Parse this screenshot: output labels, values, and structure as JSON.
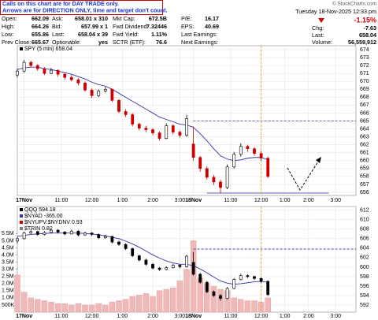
{
  "quote": {
    "notes": [
      "Calls on this chart are for DAY TRADE only.",
      "Arrows are for DIRECTION ONLY, time and target don't count."
    ],
    "rows": [
      [
        [
          "Open:",
          "662.09"
        ],
        [
          "Ask:",
          "658.01 x 310"
        ],
        [
          "Mkt Cap:",
          "672.5B"
        ],
        [
          "P/E:",
          "16.17"
        ]
      ],
      [
        [
          "High:",
          "664.26"
        ],
        [
          "Bid:",
          "657.99 x 1"
        ],
        [
          "Fwd Dividend:",
          "7.32446"
        ],
        [
          "EPS:",
          "40.69"
        ]
      ],
      [
        [
          "Low:",
          "655.86"
        ],
        [
          "Last:",
          "658.04 x 39"
        ],
        [
          "Fwd Yield:",
          "1.11%"
        ],
        [
          "Last Earnings:",
          ""
        ]
      ],
      [
        [
          "Prev Close:",
          "665.67"
        ],
        [
          "Optionable:",
          "yes"
        ],
        [
          "SCTR (ETF):",
          "76.6"
        ],
        [
          "Next Earnings:",
          ""
        ]
      ]
    ],
    "copyright": "© StockCharts.com",
    "date": "Tuesday 18-Nov-2025 12:33 pm",
    "change_pct": "-1.15%",
    "side": [
      [
        "Chg:",
        "-7.63"
      ],
      [
        "Last:",
        "658.04"
      ],
      [
        "Volume:",
        "56,559,912"
      ]
    ]
  },
  "chart_data": [
    {
      "type": "candlestick",
      "legend": [
        {
          "name": "SPY (5 min) 658.04",
          "color": "#000000"
        }
      ],
      "colors": {
        "up": "#000000",
        "down": "#cc0000",
        "ma": "#3333aa"
      },
      "xlim": [
        0,
        100
      ],
      "ylim": [
        655.6,
        674.5
      ],
      "xticks": [
        {
          "value": 2,
          "label": "17Nov"
        },
        {
          "value": 13,
          "label": "11:00"
        },
        {
          "value": 22,
          "label": "12:00"
        },
        {
          "value": 31,
          "label": "1:00"
        },
        {
          "value": 40,
          "label": "2:00"
        },
        {
          "value": 48,
          "label": "3:00"
        },
        {
          "value": 52,
          "label": "18Nov"
        },
        {
          "value": 63,
          "label": "11:00"
        },
        {
          "value": 72,
          "label": "12:00"
        },
        {
          "value": 79,
          "label": "1:00"
        },
        {
          "value": 86,
          "label": "2:00"
        },
        {
          "value": 94,
          "label": "3:00"
        }
      ],
      "yticks": [
        656,
        657,
        658,
        659,
        660,
        661,
        662,
        663,
        664,
        665,
        666,
        667,
        668,
        669,
        670,
        671,
        672,
        673,
        674
      ],
      "grid": true,
      "candles": [
        [
          0,
          670.8,
          671.6,
          670.5,
          671.3
        ],
        [
          2,
          671.3,
          672.7,
          671.1,
          672.4
        ],
        [
          4,
          672.4,
          672.6,
          671.8,
          672.0
        ],
        [
          6,
          672.0,
          672.2,
          671.3,
          671.6
        ],
        [
          8,
          671.6,
          671.8,
          670.8,
          671.0
        ],
        [
          10,
          671.0,
          671.7,
          670.9,
          671.4
        ],
        [
          12,
          671.4,
          671.5,
          670.6,
          670.9
        ],
        [
          14,
          670.9,
          671.1,
          670.2,
          670.5
        ],
        [
          16,
          670.5,
          670.8,
          670.0,
          670.2
        ],
        [
          18,
          670.2,
          670.4,
          669.5,
          669.8
        ],
        [
          20,
          669.8,
          670.0,
          668.7,
          668.9
        ],
        [
          22,
          668.9,
          669.1,
          667.9,
          668.2
        ],
        [
          24,
          668.2,
          669.0,
          668.0,
          668.8
        ],
        [
          26,
          668.8,
          669.3,
          668.6,
          669.0
        ],
        [
          28,
          669.0,
          669.1,
          667.4,
          667.6
        ],
        [
          30,
          667.6,
          667.8,
          666.0,
          666.2
        ],
        [
          32,
          666.2,
          666.5,
          665.5,
          665.8
        ],
        [
          34,
          665.8,
          666.0,
          664.3,
          664.6
        ],
        [
          36,
          664.6,
          664.8,
          663.8,
          664.1
        ],
        [
          38,
          664.1,
          664.4,
          663.6,
          663.9
        ],
        [
          40,
          663.9,
          664.1,
          663.2,
          663.5
        ],
        [
          42,
          663.5,
          663.7,
          662.5,
          662.8
        ],
        [
          44,
          662.8,
          664.7,
          662.7,
          664.4
        ],
        [
          46,
          664.4,
          664.6,
          663.3,
          663.6
        ],
        [
          48,
          663.6,
          663.8,
          662.9,
          663.2
        ],
        [
          50,
          663.2,
          665.8,
          663.0,
          665.3
        ],
        [
          52,
          662.1,
          664.3,
          660.0,
          660.4
        ],
        [
          54,
          660.4,
          660.6,
          658.6,
          659.0
        ],
        [
          56,
          659.0,
          659.3,
          657.6,
          657.9
        ],
        [
          58,
          657.9,
          658.2,
          656.9,
          657.3
        ],
        [
          60,
          657.3,
          657.6,
          655.9,
          656.6
        ],
        [
          62,
          656.6,
          659.5,
          656.4,
          659.2
        ],
        [
          64,
          659.2,
          661.1,
          659.0,
          660.8
        ],
        [
          66,
          660.8,
          662.2,
          660.5,
          661.8
        ],
        [
          68,
          661.8,
          662.0,
          661.1,
          661.5
        ],
        [
          70,
          661.5,
          661.7,
          660.6,
          660.9
        ],
        [
          72,
          660.9,
          661.2,
          660.0,
          660.3
        ],
        [
          74,
          660.3,
          660.5,
          657.8,
          658.0
        ]
      ],
      "ma": [
        671.5,
        671.7,
        671.8,
        671.8,
        671.6,
        671.5,
        671.3,
        671.1,
        670.9,
        670.6,
        670.3,
        669.9,
        669.6,
        669.4,
        669.0,
        668.5,
        668.0,
        667.5,
        667.0,
        666.5,
        666.0,
        665.5,
        665.2,
        664.9,
        664.6,
        664.5,
        664.2,
        663.4,
        662.5,
        661.5,
        660.6,
        660.2,
        660.0,
        660.1,
        660.3,
        660.4,
        660.4,
        660.1
      ],
      "hlines": [
        {
          "value": 665.0,
          "x": [
            52,
            100
          ],
          "color": "#3333aa",
          "dashed": true
        },
        {
          "value": 655.9,
          "x": [
            56,
            92
          ],
          "color": "#3333aa",
          "dashed": false
        }
      ],
      "vline": {
        "value": 72,
        "color": "#f0a020"
      }
    },
    {
      "type": "candlestick",
      "legend": [
        {
          "name": "QQQ 594.18",
          "color": "#000000"
        },
        {
          "name": "$NYAD -365.00",
          "color": "#3333aa"
        },
        {
          "name": "$NYUPV:$NYDNV 0.93",
          "color": "#cc0000"
        },
        {
          "name": "$TRIN 0.82",
          "color": "#808080"
        }
      ],
      "colors": {
        "up": "#000000",
        "down": "#000000",
        "ma": "#3333aa",
        "volume": "#f2b8b8"
      },
      "xlim": [
        0,
        100
      ],
      "ylim": [
        590.5,
        612.8
      ],
      "vlim": [
        0,
        7400000
      ],
      "xticks": [
        {
          "value": 2,
          "label": "17Nov"
        },
        {
          "value": 13,
          "label": "11:00"
        },
        {
          "value": 22,
          "label": "12:00"
        },
        {
          "value": 31,
          "label": "1:00"
        },
        {
          "value": 40,
          "label": "2:00"
        },
        {
          "value": 48,
          "label": "3:00"
        },
        {
          "value": 52,
          "label": "18Nov"
        },
        {
          "value": 63,
          "label": "11:00"
        },
        {
          "value": 72,
          "label": "12:00"
        },
        {
          "value": 79,
          "label": "1:00"
        },
        {
          "value": 86,
          "label": "2:00"
        },
        {
          "value": 94,
          "label": "3:00"
        }
      ],
      "yticks": [
        592,
        594,
        596,
        598,
        600,
        602,
        604,
        606,
        608,
        610,
        612
      ],
      "vticks": [
        {
          "value": 500000,
          "label": "500K"
        },
        {
          "value": 1000000,
          "label": "1.0M"
        },
        {
          "value": 1500000,
          "label": "1.5M"
        },
        {
          "value": 2000000,
          "label": "2.0M"
        },
        {
          "value": 2500000,
          "label": "2.5M"
        },
        {
          "value": 3000000,
          "label": "3.0M"
        },
        {
          "value": 3500000,
          "label": "3.5M"
        },
        {
          "value": 4000000,
          "label": "4.0M"
        },
        {
          "value": 4500000,
          "label": "4.5M"
        },
        {
          "value": 5000000,
          "label": "5.0M"
        },
        {
          "value": 5500000,
          "label": "5.5M"
        }
      ],
      "grid": true,
      "candles": [
        [
          0,
          605.5,
          606.4,
          605.0,
          606.0
        ],
        [
          2,
          606.0,
          607.5,
          605.8,
          607.2
        ],
        [
          4,
          607.2,
          607.9,
          607.0,
          607.5
        ],
        [
          6,
          607.5,
          607.7,
          606.6,
          606.9
        ],
        [
          8,
          606.9,
          607.6,
          606.7,
          607.3
        ],
        [
          10,
          607.3,
          608.1,
          607.1,
          607.8
        ],
        [
          12,
          607.8,
          608.0,
          607.1,
          607.4
        ],
        [
          14,
          607.4,
          607.6,
          606.7,
          607.0
        ],
        [
          16,
          607.0,
          607.9,
          606.9,
          607.6
        ],
        [
          18,
          607.6,
          607.8,
          606.5,
          606.8
        ],
        [
          20,
          606.8,
          607.5,
          606.6,
          607.2
        ],
        [
          22,
          607.2,
          607.4,
          606.6,
          606.9
        ],
        [
          24,
          606.9,
          607.1,
          605.9,
          606.2
        ],
        [
          26,
          606.2,
          606.8,
          606.0,
          606.5
        ],
        [
          28,
          606.5,
          606.6,
          605.0,
          605.3
        ],
        [
          30,
          605.3,
          605.6,
          604.5,
          604.8
        ],
        [
          32,
          604.8,
          605.0,
          603.6,
          603.9
        ],
        [
          34,
          603.9,
          604.1,
          602.1,
          602.4
        ],
        [
          36,
          602.4,
          602.6,
          601.2,
          601.5
        ],
        [
          38,
          601.5,
          601.8,
          600.3,
          600.6
        ],
        [
          40,
          600.6,
          600.9,
          599.5,
          599.8
        ],
        [
          42,
          599.8,
          600.0,
          599.2,
          599.5
        ],
        [
          44,
          599.5,
          600.2,
          599.3,
          599.9
        ],
        [
          46,
          599.9,
          600.7,
          599.7,
          600.4
        ],
        [
          48,
          600.4,
          600.6,
          599.8,
          600.1
        ],
        [
          50,
          600.1,
          602.6,
          599.9,
          602.3
        ],
        [
          52,
          601.0,
          603.2,
          598.2,
          598.5
        ],
        [
          54,
          598.5,
          598.8,
          596.5,
          596.8
        ],
        [
          56,
          596.8,
          597.1,
          594.5,
          594.8
        ],
        [
          58,
          594.8,
          595.1,
          593.7,
          594.0
        ],
        [
          60,
          594.0,
          594.3,
          592.9,
          593.4
        ],
        [
          62,
          593.4,
          595.8,
          593.2,
          595.5
        ],
        [
          64,
          595.5,
          597.7,
          595.3,
          597.4
        ],
        [
          66,
          597.4,
          598.6,
          597.2,
          598.2
        ],
        [
          68,
          598.2,
          598.5,
          597.7,
          598.0
        ],
        [
          70,
          598.0,
          598.2,
          597.3,
          597.6
        ],
        [
          72,
          597.6,
          597.9,
          596.7,
          597.0
        ],
        [
          74,
          597.0,
          597.2,
          593.9,
          594.2
        ]
      ],
      "ma": [
        606.5,
        606.7,
        606.9,
        607.0,
        607.1,
        607.2,
        607.2,
        607.2,
        607.2,
        607.2,
        607.1,
        607.0,
        606.8,
        606.6,
        606.3,
        606.0,
        605.5,
        604.9,
        604.2,
        603.4,
        602.6,
        601.9,
        601.3,
        600.9,
        600.6,
        600.6,
        600.3,
        599.6,
        598.8,
        597.9,
        597.1,
        596.6,
        596.4,
        596.5,
        596.7,
        596.9,
        597.0,
        596.8
      ],
      "volume": [
        2600000,
        1400000,
        1000000,
        900000,
        800000,
        700000,
        600000,
        600000,
        500000,
        600000,
        500000,
        500000,
        600000,
        500000,
        700000,
        800000,
        900000,
        1100000,
        1200000,
        1300000,
        1100000,
        1500000,
        1600000,
        1700000,
        2200000,
        3000000,
        5000000,
        2400000,
        2000000,
        1800000,
        1600000,
        1500000,
        1000000,
        900000,
        800000,
        800000,
        700000,
        1000000
      ],
      "hlines": [
        {
          "value": 603.8,
          "x": [
            52,
            100
          ],
          "color": "#3333aa",
          "dashed": true
        }
      ],
      "vline": {
        "value": 72,
        "color": "#f0a020"
      }
    }
  ]
}
